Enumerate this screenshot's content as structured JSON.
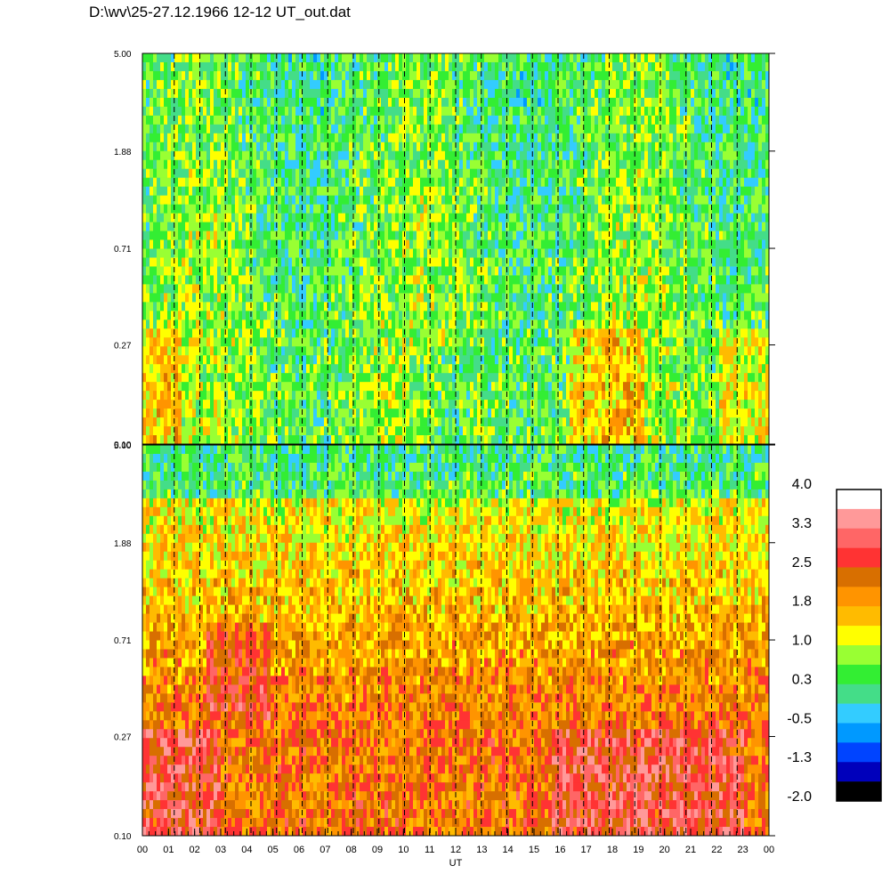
{
  "title": "D:\\wv\\25-27.12.1966  12-12 UT_out.dat",
  "chart_data": {
    "type": "heatmap",
    "panels": [
      {
        "name": "",
        "y_ticks": [
          "5.00",
          "1.88",
          "0.71",
          "0.27",
          "0.10"
        ],
        "y_tick_values": [
          5.0,
          1.88,
          0.71,
          0.27,
          0.1
        ],
        "ylim": [
          0.1,
          5.0
        ],
        "y_scale": "log",
        "dominant_levels": "green-cyan-yellow (about -0.5 to 1.3), higher near bottom-left and right"
      },
      {
        "name": "",
        "y_ticks": [
          "5.00",
          "1.88",
          "0.71",
          "0.27",
          "0.10"
        ],
        "y_tick_values": [
          5.0,
          1.88,
          0.71,
          0.27,
          0.1
        ],
        "ylim": [
          0.1,
          5.0
        ],
        "y_scale": "log",
        "dominant_levels": "orange-yellow (about 1.0 to 2.5), red near bottom, green near top"
      }
    ],
    "x_ticks": [
      "00",
      "01",
      "02",
      "03",
      "04",
      "05",
      "06",
      "07",
      "08",
      "09",
      "10",
      "11",
      "12",
      "13",
      "14",
      "15",
      "16",
      "17",
      "18",
      "19",
      "20",
      "21",
      "22",
      "23",
      "00"
    ],
    "xlabel": "UT",
    "grid": "dashed vertical lines at each hour",
    "colorbar": {
      "labels": [
        "4.0",
        "3.3",
        "2.5",
        "1.8",
        "1.0",
        "0.3",
        "-0.5",
        "-1.3",
        "-2.0"
      ],
      "range": [
        -2.0,
        4.0
      ],
      "colors_top_to_bottom": [
        "#ffffff",
        "#ff9999",
        "#ff6666",
        "#ff3333",
        "#d86f00",
        "#ff9400",
        "#ffbb00",
        "#ffff00",
        "#99ff33",
        "#33ee33",
        "#44dd88",
        "#33ccff",
        "#0099ff",
        "#0044ff",
        "#0000bb",
        "#000000"
      ]
    }
  }
}
